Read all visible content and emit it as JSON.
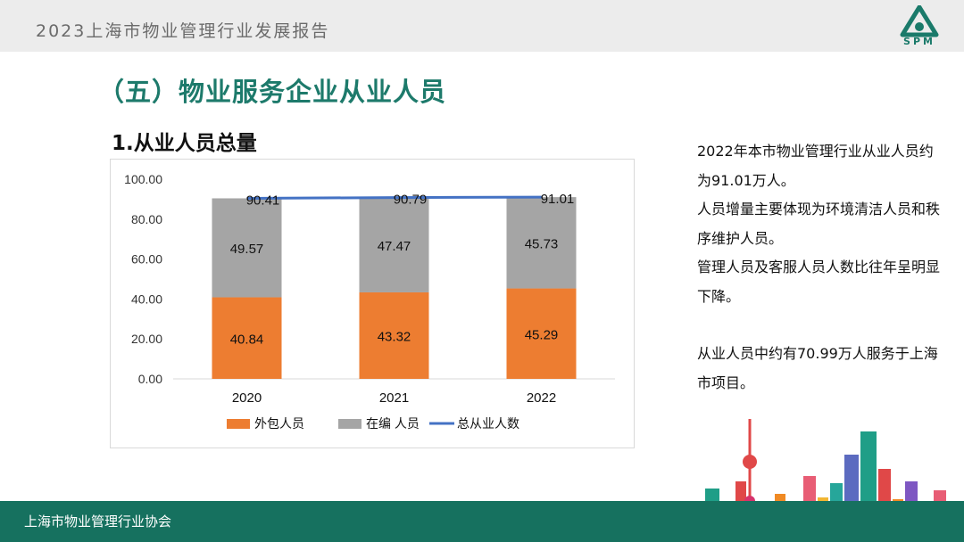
{
  "header": {
    "report_title": "2023上海市物业管理行业发展报告",
    "logo_text": "SPM"
  },
  "section_title": "（五）物业服务企业从业人员",
  "sub_title": "1.从业人员总量",
  "notes": {
    "paragraphs": [
      "2022年本市物业管理行业从业人员约为91.01万人。",
      "人员增量主要体现为环境清洁人员和秩序维护人员。",
      "管理人员及客服人员人数比往年呈明显下降。",
      "",
      "从业人员中约有70.99万人服务于上海市项目。"
    ]
  },
  "footer": {
    "association": "上海市物业管理行业协会"
  },
  "colors": {
    "brand_green": "#1d7a6b",
    "outsourced": "#ed7d31",
    "staff": "#a5a5a5",
    "total_line": "#4472c4"
  },
  "chart_data": {
    "type": "bar",
    "stacked": true,
    "categories": [
      "2020",
      "2021",
      "2022"
    ],
    "series": [
      {
        "name": "外包人员",
        "type": "bar",
        "color": "#ed7d31",
        "values": [
          40.84,
          43.32,
          45.29
        ],
        "labels": [
          "40.84",
          "43.32",
          "45.29"
        ]
      },
      {
        "name": "在编 人员",
        "type": "bar",
        "color": "#a5a5a5",
        "values": [
          49.57,
          47.47,
          45.73
        ],
        "labels": [
          "49.57",
          "47.47",
          "45.73"
        ]
      },
      {
        "name": "总从业人数",
        "type": "line",
        "color": "#4472c4",
        "values": [
          90.41,
          90.79,
          91.01
        ],
        "labels": [
          "90.41",
          "90.79",
          "91.01"
        ]
      }
    ],
    "ylim": [
      0,
      100
    ],
    "yticks": [
      0,
      20,
      40,
      60,
      80,
      100
    ],
    "ytick_labels": [
      "0.00",
      "20.00",
      "40.00",
      "60.00",
      "80.00",
      "100.00"
    ],
    "grid": false,
    "legend_position": "bottom",
    "title": "",
    "xlabel": "",
    "ylabel": ""
  }
}
